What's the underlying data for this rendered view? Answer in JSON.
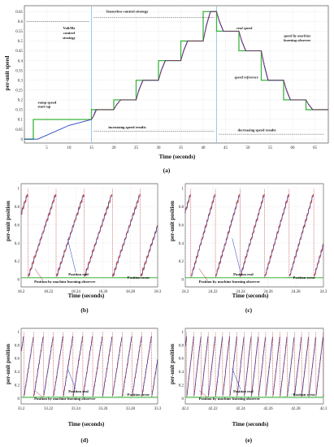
{
  "chart_data": [
    {
      "id": "a",
      "type": "line",
      "panel_label": "(a)",
      "xlabel": "Time (seconds)",
      "ylabel": "per-unit speed",
      "xlim": [
        0,
        68
      ],
      "ylim": [
        -0.02,
        0.68
      ],
      "xticks": [
        5,
        10,
        15,
        20,
        25,
        30,
        35,
        40,
        45,
        50,
        55,
        60,
        65
      ],
      "yticks": [
        0,
        0.05,
        0.1,
        0.15,
        0.2,
        0.25,
        0.3,
        0.35,
        0.4,
        0.45,
        0.5,
        0.55,
        0.6,
        0.65
      ],
      "grid": true,
      "series": [
        {
          "name": "speed reference",
          "color": "#3cb43c",
          "x": [
            0,
            2,
            2,
            10,
            15,
            15,
            20,
            20,
            25,
            25,
            30,
            30,
            35,
            35,
            40,
            40,
            43,
            43,
            48,
            48,
            53,
            53,
            58,
            58,
            63,
            63,
            68
          ],
          "y": [
            0,
            0,
            0.1,
            0.1,
            0.1,
            0.15,
            0.15,
            0.2,
            0.2,
            0.3,
            0.3,
            0.4,
            0.4,
            0.5,
            0.5,
            0.65,
            0.65,
            0.55,
            0.55,
            0.45,
            0.45,
            0.3,
            0.3,
            0.2,
            0.2,
            0.15,
            0.15
          ]
        },
        {
          "name": "real speed",
          "color": "#1f3fbf",
          "x": [
            0,
            3,
            10,
            15,
            15.5,
            16,
            20,
            20.6,
            21.5,
            25,
            25.6,
            26.5,
            30,
            30.6,
            31.5,
            35,
            35.6,
            36.5,
            40,
            40.7,
            41.6,
            43,
            43.6,
            44.5,
            48,
            48.6,
            49.5,
            53,
            53.6,
            54.5,
            58,
            58.6,
            59.5,
            63,
            63.6,
            64.5,
            68
          ],
          "y": [
            0,
            0,
            0.07,
            0.1,
            0.12,
            0.15,
            0.15,
            0.175,
            0.2,
            0.2,
            0.25,
            0.3,
            0.3,
            0.35,
            0.4,
            0.4,
            0.45,
            0.5,
            0.5,
            0.58,
            0.65,
            0.65,
            0.6,
            0.55,
            0.55,
            0.5,
            0.45,
            0.45,
            0.38,
            0.3,
            0.3,
            0.25,
            0.2,
            0.2,
            0.175,
            0.15,
            0.15
          ]
        },
        {
          "name": "speed by machine learning observer",
          "color": "#b42828",
          "x": [
            15,
            15.6,
            16.2,
            20,
            20.7,
            21.6,
            25,
            25.7,
            26.6,
            30,
            30.7,
            31.6,
            35,
            35.7,
            36.6,
            40,
            40.8,
            41.7,
            43,
            43.7,
            44.6,
            48,
            48.7,
            49.6,
            53,
            53.7,
            54.6,
            58,
            58.7,
            59.6,
            63,
            63.7,
            64.6,
            68
          ],
          "y": [
            0.1,
            0.12,
            0.15,
            0.15,
            0.175,
            0.2,
            0.2,
            0.25,
            0.3,
            0.3,
            0.35,
            0.4,
            0.4,
            0.45,
            0.5,
            0.5,
            0.58,
            0.65,
            0.65,
            0.6,
            0.55,
            0.55,
            0.5,
            0.45,
            0.45,
            0.38,
            0.3,
            0.3,
            0.25,
            0.2,
            0.2,
            0.175,
            0.15,
            0.15
          ]
        }
      ],
      "annotations": [
        {
          "text": "Volt/Hz",
          "x": 10,
          "y": 0.56
        },
        {
          "text": "control",
          "x": 10,
          "y": 0.535
        },
        {
          "text": "strategy",
          "x": 10,
          "y": 0.51
        },
        {
          "text": "Sensorless control strategy",
          "x": 23,
          "y": 0.645
        },
        {
          "text": "ramp speed",
          "x": 3,
          "y": 0.18
        },
        {
          "text": "start-up",
          "x": 3,
          "y": 0.16
        },
        {
          "text": "increasing speed results",
          "x": 23,
          "y": 0.055
        },
        {
          "text": "decreasing speed results",
          "x": 52,
          "y": 0.04
        },
        {
          "text": "real speed",
          "x": 47.5,
          "y": 0.56
        },
        {
          "text": "speed by machine",
          "x": 58,
          "y": 0.52
        },
        {
          "text": "learning observer",
          "x": 58,
          "y": 0.497
        },
        {
          "text": "speed reference",
          "x": 47,
          "y": 0.31
        }
      ]
    },
    {
      "id": "b",
      "type": "line",
      "panel_label": "(b)",
      "xlabel": "Time (seconds)",
      "ylabel": "per-unit position",
      "xlim": [
        18.2,
        18.3
      ],
      "ylim": [
        -0.08,
        1.05
      ],
      "xticks": [
        "18.2",
        "18.22",
        "18.24",
        "18.26",
        "18.28",
        "18.3"
      ],
      "yticks": [
        "0",
        "0.2",
        "0.4",
        "0.6",
        "0.8",
        "1"
      ],
      "period": 0.0206,
      "phase": 0.005,
      "series": [
        {
          "name": "Position real",
          "color": "#1f3fbf"
        },
        {
          "name": "Position by machine learning observer",
          "color": "#b42828"
        },
        {
          "name": "Position error",
          "color": "#3cb43c",
          "value": 0.02
        }
      ],
      "annotations": [
        {
          "text": "Position real"
        },
        {
          "text": "Position by machine learning observer"
        },
        {
          "text": "Position error"
        }
      ]
    },
    {
      "id": "c",
      "type": "line",
      "panel_label": "(c)",
      "xlabel": "Time (seconds)",
      "ylabel": "per-unit position",
      "xlim": [
        24.2,
        24.3
      ],
      "ylim": [
        -0.08,
        1.05
      ],
      "xticks": [
        "24.2",
        "24.22",
        "24.24",
        "24.26",
        "24.28",
        "24.3"
      ],
      "yticks": [
        "0",
        "0.2",
        "0.4",
        "0.6",
        "0.8",
        "1"
      ],
      "period": 0.0178,
      "phase": 0.004,
      "series": [
        {
          "name": "Position real",
          "color": "#1f3fbf"
        },
        {
          "name": "Position by machine learning observer",
          "color": "#b42828"
        },
        {
          "name": "Position error",
          "color": "#3cb43c",
          "value": 0.02
        }
      ],
      "annotations": [
        {
          "text": "Position real"
        },
        {
          "text": "Position by machine learning observer"
        },
        {
          "text": "Position error"
        }
      ]
    },
    {
      "id": "d",
      "type": "line",
      "panel_label": "(d)",
      "xlabel": "Time (seconds)",
      "ylabel": "per-unit position",
      "xlim": [
        33.2,
        33.3
      ],
      "ylim": [
        -0.08,
        1.05
      ],
      "xticks": [
        "33.2",
        "33.22",
        "33.24",
        "33.26",
        "33.28",
        "33.3"
      ],
      "yticks": [
        "0",
        "0.2",
        "0.4",
        "0.6",
        "0.8",
        "1"
      ],
      "period": 0.0072,
      "phase": 0.002,
      "series": [
        {
          "name": "Position real",
          "color": "#1f3fbf"
        },
        {
          "name": "Position by machine learning observer",
          "color": "#b42828"
        },
        {
          "name": "Position error",
          "color": "#3cb43c",
          "value": 0.02
        }
      ],
      "annotations": [
        {
          "text": "Position real"
        },
        {
          "text": "Position by machine learning observer"
        },
        {
          "text": "Position error"
        }
      ]
    },
    {
      "id": "e",
      "type": "line",
      "panel_label": "(e)",
      "xlabel": "Time (seconds)",
      "ylabel": "per-unit position",
      "xlim": [
        42.2,
        42.3
      ],
      "ylim": [
        -0.08,
        1.05
      ],
      "xticks": [
        "42.2",
        "42.22",
        "42.24",
        "42.26",
        "42.28",
        "42.3"
      ],
      "yticks": [
        "0",
        "0.2",
        "0.4",
        "0.6",
        "0.8",
        "1"
      ],
      "period": 0.0052,
      "phase": 0.001,
      "series": [
        {
          "name": "Position real",
          "color": "#1f3fbf"
        },
        {
          "name": "Position by machine learning observer",
          "color": "#b42828"
        },
        {
          "name": "Position error",
          "color": "#3cb43c",
          "value": 0.02
        }
      ],
      "annotations": [
        {
          "text": "Position real"
        },
        {
          "text": "Position by machine learning observer"
        },
        {
          "text": "Position error"
        }
      ]
    }
  ]
}
